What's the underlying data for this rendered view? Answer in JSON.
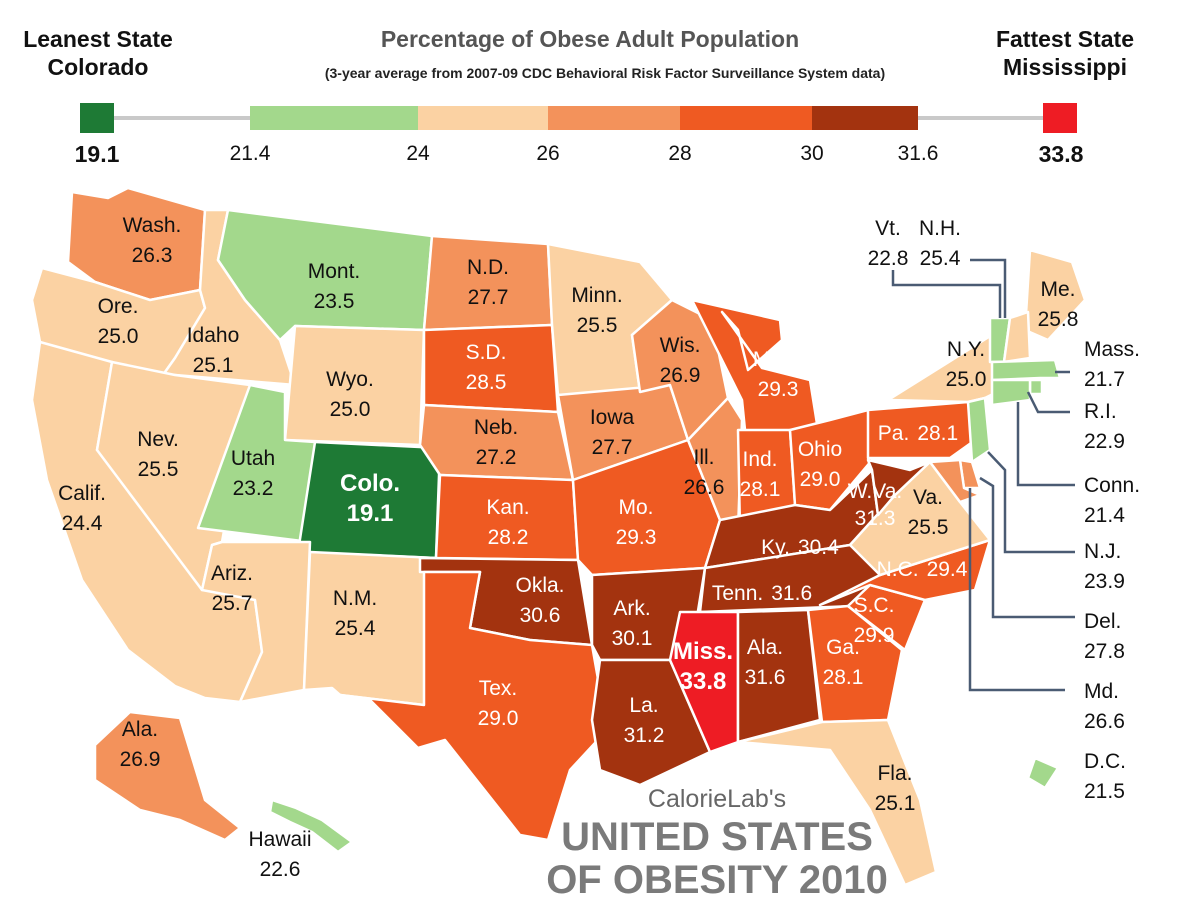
{
  "header": {
    "leanest_label": "Leanest State",
    "leanest_state": "Colorado",
    "title": "Percentage of Obese Adult Population",
    "subtitle": "(3-year average from 2007-09 CDC Behavioral Risk Factor Surveillance System data)",
    "fattest_label": "Fattest State",
    "fattest_state": "Mississippi"
  },
  "legend": {
    "min_value": "19.1",
    "max_value": "33.8",
    "min_color": "#1e7a35",
    "max_color": "#ee1c24",
    "bins": [
      {
        "from": 21.4,
        "to": 24,
        "color": "#a3d88c"
      },
      {
        "from": 24,
        "to": 26,
        "color": "#fbd2a3"
      },
      {
        "from": 26,
        "to": 28,
        "color": "#f3925b"
      },
      {
        "from": 28,
        "to": 30,
        "color": "#ef5a22"
      },
      {
        "from": 30,
        "to": 31.6,
        "color": "#a3330f"
      }
    ],
    "ticks": [
      "21.4",
      "24",
      "26",
      "28",
      "30",
      "31.6"
    ]
  },
  "states": [
    {
      "id": "wash",
      "name": "Wash.",
      "value": "26.3",
      "color": "#f3925b"
    },
    {
      "id": "ore",
      "name": "Ore.",
      "value": "25.0",
      "color": "#fbd2a3"
    },
    {
      "id": "calif",
      "name": "Calif.",
      "value": "24.4",
      "color": "#fbd2a3"
    },
    {
      "id": "idaho",
      "name": "Idaho",
      "value": "25.1",
      "color": "#fbd2a3"
    },
    {
      "id": "nev",
      "name": "Nev.",
      "value": "25.5",
      "color": "#fbd2a3"
    },
    {
      "id": "mont",
      "name": "Mont.",
      "value": "23.5",
      "color": "#a3d88c"
    },
    {
      "id": "wyo",
      "name": "Wyo.",
      "value": "25.0",
      "color": "#fbd2a3"
    },
    {
      "id": "utah",
      "name": "Utah",
      "value": "23.2",
      "color": "#a3d88c"
    },
    {
      "id": "colo",
      "name": "Colo.",
      "value": "19.1",
      "color": "#1e7a35"
    },
    {
      "id": "ariz",
      "name": "Ariz.",
      "value": "25.7",
      "color": "#fbd2a3"
    },
    {
      "id": "nm",
      "name": "N.M.",
      "value": "25.4",
      "color": "#fbd2a3"
    },
    {
      "id": "nd",
      "name": "N.D.",
      "value": "27.7",
      "color": "#f3925b"
    },
    {
      "id": "sd",
      "name": "S.D.",
      "value": "28.5",
      "color": "#ef5a22"
    },
    {
      "id": "neb",
      "name": "Neb.",
      "value": "27.2",
      "color": "#f3925b"
    },
    {
      "id": "kan",
      "name": "Kan.",
      "value": "28.2",
      "color": "#ef5a22"
    },
    {
      "id": "okla",
      "name": "Okla.",
      "value": "30.6",
      "color": "#a3330f"
    },
    {
      "id": "tex",
      "name": "Tex.",
      "value": "29.0",
      "color": "#ef5a22"
    },
    {
      "id": "minn",
      "name": "Minn.",
      "value": "25.5",
      "color": "#fbd2a3"
    },
    {
      "id": "iowa",
      "name": "Iowa",
      "value": "27.7",
      "color": "#f3925b"
    },
    {
      "id": "mo",
      "name": "Mo.",
      "value": "29.3",
      "color": "#ef5a22"
    },
    {
      "id": "ark",
      "name": "Ark.",
      "value": "30.1",
      "color": "#a3330f"
    },
    {
      "id": "la",
      "name": "La.",
      "value": "31.2",
      "color": "#a3330f"
    },
    {
      "id": "wis",
      "name": "Wis.",
      "value": "26.9",
      "color": "#f3925b"
    },
    {
      "id": "ill",
      "name": "Ill.",
      "value": "26.6",
      "color": "#f3925b"
    },
    {
      "id": "mich",
      "name": "Mich.",
      "value": "29.3",
      "color": "#ef5a22"
    },
    {
      "id": "ind",
      "name": "Ind.",
      "value": "28.1",
      "color": "#ef5a22"
    },
    {
      "id": "ohio",
      "name": "Ohio",
      "value": "29.0",
      "color": "#ef5a22"
    },
    {
      "id": "ky",
      "name": "Ky.",
      "value": "30.4",
      "color": "#a3330f"
    },
    {
      "id": "tenn",
      "name": "Tenn.",
      "value": "31.6",
      "color": "#a3330f"
    },
    {
      "id": "miss",
      "name": "Miss.",
      "value": "33.8",
      "color": "#ee1c24"
    },
    {
      "id": "ala",
      "name": "Ala.",
      "value": "31.6",
      "color": "#a3330f"
    },
    {
      "id": "ga",
      "name": "Ga.",
      "value": "28.1",
      "color": "#ef5a22"
    },
    {
      "id": "fla",
      "name": "Fla.",
      "value": "25.1",
      "color": "#fbd2a3"
    },
    {
      "id": "sc",
      "name": "S.C.",
      "value": "29.9",
      "color": "#ef5a22"
    },
    {
      "id": "nc",
      "name": "N.C.",
      "value": "29.4",
      "color": "#ef5a22"
    },
    {
      "id": "va",
      "name": "Va.",
      "value": "25.5",
      "color": "#fbd2a3"
    },
    {
      "id": "wva",
      "name": "W.Va.",
      "value": "31.3",
      "color": "#a3330f"
    },
    {
      "id": "pa",
      "name": "Pa.",
      "value": "28.1",
      "color": "#ef5a22"
    },
    {
      "id": "ny",
      "name": "N.Y.",
      "value": "25.0",
      "color": "#fbd2a3"
    },
    {
      "id": "me",
      "name": "Me.",
      "value": "25.8",
      "color": "#fbd2a3"
    },
    {
      "id": "vt",
      "name": "Vt.",
      "value": "22.8",
      "color": "#a3d88c"
    },
    {
      "id": "nh",
      "name": "N.H.",
      "value": "25.4",
      "color": "#fbd2a3"
    },
    {
      "id": "mass",
      "name": "Mass.",
      "value": "21.7",
      "color": "#a3d88c"
    },
    {
      "id": "ri",
      "name": "R.I.",
      "value": "22.9",
      "color": "#a3d88c"
    },
    {
      "id": "conn",
      "name": "Conn.",
      "value": "21.4",
      "color": "#a3d88c"
    },
    {
      "id": "nj",
      "name": "N.J.",
      "value": "23.9",
      "color": "#a3d88c"
    },
    {
      "id": "del",
      "name": "Del.",
      "value": "27.8",
      "color": "#f3925b"
    },
    {
      "id": "md",
      "name": "Md.",
      "value": "26.6",
      "color": "#f3925b"
    },
    {
      "id": "dc",
      "name": "D.C.",
      "value": "21.5",
      "color": "#a3d88c"
    },
    {
      "id": "alaska",
      "name": "Ala.",
      "value": "26.9",
      "color": "#f3925b"
    },
    {
      "id": "hawaii",
      "name": "Hawaii",
      "value": "22.6",
      "color": "#a3d88c"
    }
  ],
  "branding": {
    "byline": "CalorieLab's",
    "title_line1": "UNITED STATES",
    "title_line2": "OF OBESITY 2010"
  }
}
